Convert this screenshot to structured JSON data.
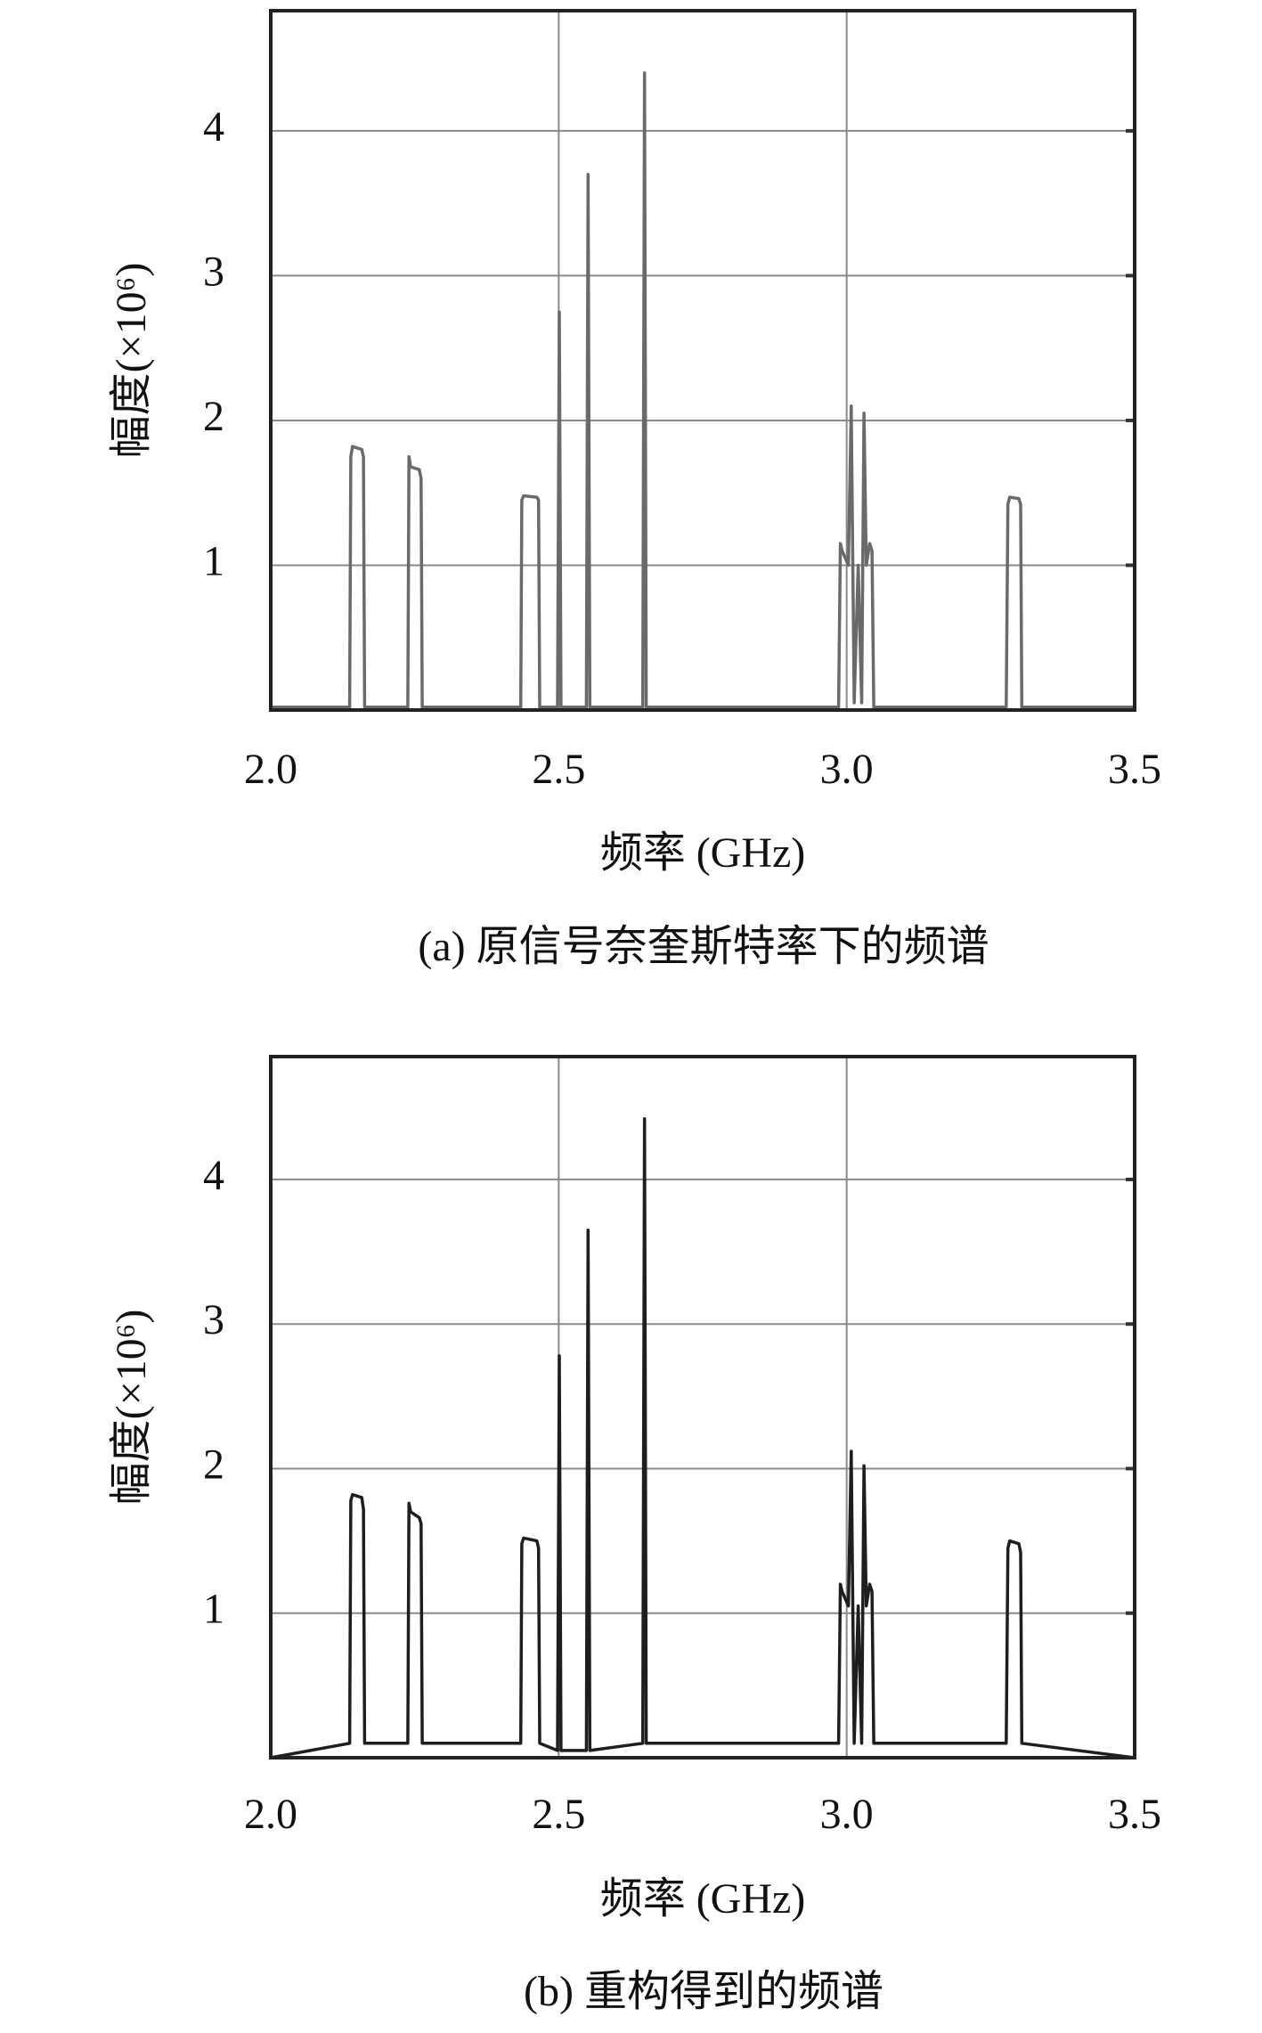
{
  "chart_data": [
    {
      "type": "line",
      "x_label": "频率 (GHz)",
      "y_label": "幅度(×10⁶)",
      "caption": "(a) 原信号奈奎斯特率下的频谱",
      "xlim": [
        2.0,
        3.5
      ],
      "ylim": [
        0,
        4.83
      ],
      "xticks": [
        {
          "value": 2.0,
          "label": "2.0"
        },
        {
          "value": 2.5,
          "label": "2.5"
        },
        {
          "value": 3.0,
          "label": "3.0"
        },
        {
          "value": 3.5,
          "label": "3.5"
        }
      ],
      "yticks": [
        1,
        2,
        3,
        4
      ],
      "grid": true,
      "x": [
        2.0,
        2.137,
        2.139,
        2.142,
        2.158,
        2.161,
        2.163,
        2.238,
        2.24,
        2.243,
        2.258,
        2.261,
        2.263,
        2.434,
        2.436,
        2.439,
        2.462,
        2.465,
        2.467,
        2.498,
        2.501,
        2.504,
        2.548,
        2.551,
        2.554,
        2.646,
        2.649,
        2.652,
        2.986,
        2.989,
        2.992,
        3.003,
        3.008,
        3.013,
        3.02,
        3.026,
        3.03,
        3.034,
        3.04,
        3.044,
        3.047,
        3.277,
        3.28,
        3.283,
        3.299,
        3.302,
        3.304,
        3.5
      ],
      "series": [
        {
          "color": "#6a6a6a",
          "values": [
            0.02,
            0.02,
            1.75,
            1.82,
            1.8,
            1.75,
            0.02,
            0.02,
            1.75,
            1.68,
            1.66,
            1.6,
            0.02,
            0.02,
            1.45,
            1.48,
            1.47,
            1.45,
            0.02,
            0.02,
            2.75,
            0.02,
            0.02,
            3.7,
            0.02,
            0.02,
            4.4,
            0.02,
            0.02,
            1.15,
            1.1,
            1.0,
            2.1,
            0.05,
            1.0,
            0.05,
            2.05,
            1.0,
            1.15,
            1.1,
            0.02,
            0.02,
            1.42,
            1.47,
            1.46,
            1.42,
            0.02,
            0.02
          ]
        }
      ]
    },
    {
      "type": "line",
      "x_label": "频率 (GHz)",
      "y_label": "幅度(×10⁶)",
      "caption": "(b) 重构得到的频谱",
      "xlim": [
        2.0,
        3.5
      ],
      "ylim": [
        0,
        4.85
      ],
      "xticks": [
        {
          "value": 2.0,
          "label": "2.0"
        },
        {
          "value": 2.5,
          "label": "2.5"
        },
        {
          "value": 3.0,
          "label": "3.0"
        },
        {
          "value": 3.5,
          "label": "3.5"
        }
      ],
      "yticks": [
        1,
        2,
        3,
        4
      ],
      "grid": true,
      "x": [
        2.0,
        2.137,
        2.139,
        2.142,
        2.158,
        2.161,
        2.163,
        2.238,
        2.24,
        2.243,
        2.258,
        2.261,
        2.263,
        2.434,
        2.436,
        2.439,
        2.462,
        2.465,
        2.467,
        2.498,
        2.501,
        2.504,
        2.548,
        2.551,
        2.554,
        2.646,
        2.649,
        2.652,
        2.986,
        2.989,
        2.992,
        3.003,
        3.008,
        3.013,
        3.02,
        3.026,
        3.03,
        3.034,
        3.04,
        3.044,
        3.047,
        3.277,
        3.28,
        3.283,
        3.299,
        3.302,
        3.304,
        3.5
      ],
      "series": [
        {
          "color": "#1e1e1e",
          "values": [
            0,
            0.1,
            1.78,
            1.82,
            1.8,
            1.72,
            0.1,
            0.1,
            1.76,
            1.7,
            1.66,
            1.62,
            0.1,
            0.1,
            1.48,
            1.52,
            1.5,
            1.45,
            0.1,
            0.05,
            2.78,
            0.05,
            0.05,
            3.65,
            0.05,
            0.1,
            4.42,
            0.1,
            0.1,
            1.2,
            1.15,
            1.05,
            2.12,
            0.1,
            1.05,
            0.1,
            2.02,
            1.05,
            1.2,
            1.15,
            0.1,
            0.1,
            1.45,
            1.5,
            1.48,
            1.42,
            0.1,
            0
          ]
        }
      ]
    }
  ]
}
